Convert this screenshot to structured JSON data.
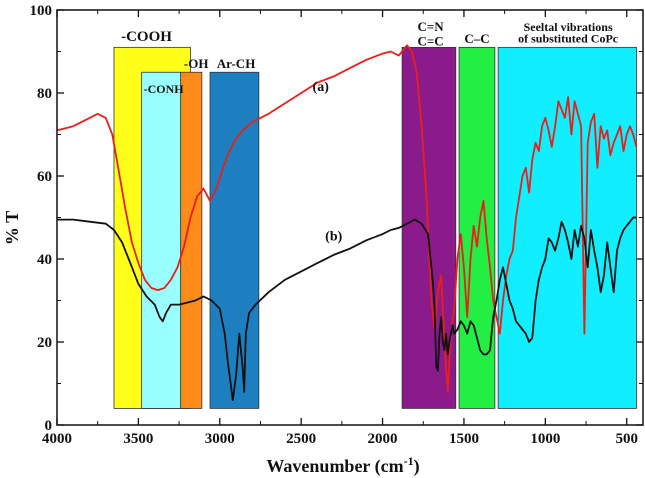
{
  "chart_data": {
    "type": "line",
    "xlabel_main": "Wavenumber (cm",
    "xlabel_sup": "-1",
    "xlabel_close": ")",
    "ylabel": "% T",
    "xlim": [
      4000,
      400
    ],
    "ylim": [
      0,
      100
    ],
    "x_ticks": [
      4000,
      3500,
      3000,
      2500,
      2000,
      1500,
      1000,
      500
    ],
    "y_ticks": [
      0,
      20,
      40,
      60,
      80,
      100
    ],
    "bands": [
      {
        "x_from": 3650,
        "x_to": 3180,
        "y_from": 4,
        "y_to": 91,
        "color": "#ffff1a",
        "label": "-COOH",
        "label_x": 3450,
        "label_y": 92.5,
        "font": 15
      },
      {
        "x_from": 3480,
        "x_to": 3240,
        "y_from": 4,
        "y_to": 85,
        "color": "#99ffff",
        "label": "-CONH",
        "label_x": 3345,
        "label_y": 80,
        "font": 12
      },
      {
        "x_from": 3240,
        "x_to": 3110,
        "y_from": 4,
        "y_to": 85,
        "color": "#ff8c1a",
        "label": "-OH",
        "label_x": 3145,
        "label_y": 86,
        "font": 13
      },
      {
        "x_from": 3060,
        "x_to": 2760,
        "y_from": 4,
        "y_to": 85,
        "color": "#1e7fc0",
        "label": "Ar-CH",
        "label_x": 2900,
        "label_y": 86,
        "font": 13
      },
      {
        "x_from": 1880,
        "x_to": 1550,
        "y_from": 4,
        "y_to": 91,
        "color": "#8b1a8b",
        "label": "C=N",
        "label_x": 1705,
        "label_y": 95,
        "font": 13,
        "label2": "C=C",
        "label2_y": 91.5
      },
      {
        "x_from": 1530,
        "x_to": 1310,
        "y_from": 4,
        "y_to": 91,
        "color": "#22ee44",
        "label": "C–C",
        "label_x": 1420,
        "label_y": 92,
        "font": 13
      },
      {
        "x_from": 1290,
        "x_to": 440,
        "y_from": 4,
        "y_to": 91,
        "color": "#11eeff",
        "label": "Seeltal vibrations",
        "label_x": 860,
        "label_y": 95,
        "font": 12,
        "label2": "of substituted CoPc",
        "label2_y": 92.2
      }
    ],
    "series": [
      {
        "name": "(a)",
        "color": "#e8201a",
        "label_x": 2380,
        "label_y": 80.5,
        "x": [
          4000,
          3900,
          3800,
          3750,
          3700,
          3660,
          3620,
          3580,
          3540,
          3500,
          3460,
          3420,
          3380,
          3340,
          3300,
          3260,
          3220,
          3180,
          3140,
          3100,
          3060,
          3020,
          2980,
          2940,
          2900,
          2860,
          2800,
          2750,
          2700,
          2600,
          2500,
          2400,
          2300,
          2200,
          2100,
          2000,
          1950,
          1900,
          1870,
          1850,
          1820,
          1790,
          1760,
          1730,
          1700,
          1680,
          1660,
          1640,
          1620,
          1600,
          1580,
          1560,
          1540,
          1520,
          1500,
          1480,
          1460,
          1440,
          1420,
          1400,
          1380,
          1360,
          1340,
          1320,
          1300,
          1280,
          1260,
          1240,
          1220,
          1200,
          1180,
          1160,
          1140,
          1120,
          1100,
          1080,
          1060,
          1040,
          1020,
          1000,
          980,
          960,
          940,
          920,
          900,
          880,
          860,
          840,
          820,
          800,
          780,
          760,
          740,
          720,
          700,
          680,
          660,
          640,
          620,
          600,
          580,
          560,
          540,
          520,
          500,
          480,
          460,
          440
        ],
        "y": [
          71,
          72,
          74,
          75,
          74,
          70,
          61,
          52,
          44,
          39,
          35,
          33,
          32.5,
          33,
          35,
          38,
          43,
          50,
          55,
          57,
          54,
          57,
          62,
          66,
          69,
          71,
          73,
          74,
          75,
          77.5,
          80,
          82.5,
          84,
          86,
          88,
          89.5,
          90,
          89,
          90.5,
          91.5,
          90,
          85,
          72,
          55,
          30,
          23,
          32,
          36,
          20,
          8,
          22,
          28,
          40,
          46,
          38,
          26,
          40,
          48,
          43,
          50,
          54,
          45,
          38,
          30,
          26,
          22,
          30,
          36,
          40,
          42,
          50,
          55,
          60,
          62,
          56,
          64,
          68,
          66,
          72,
          74,
          71,
          67,
          72,
          78,
          76,
          74,
          79,
          70,
          78,
          75,
          72,
          22,
          68,
          73,
          75,
          62,
          72,
          69,
          71,
          65,
          68,
          70,
          72,
          66,
          70,
          72,
          70,
          67
        ]
      },
      {
        "name": "(b)",
        "color": "#111111",
        "label_x": 2300,
        "label_y": 44.5,
        "x": [
          4000,
          3900,
          3800,
          3700,
          3650,
          3600,
          3550,
          3500,
          3450,
          3400,
          3370,
          3350,
          3330,
          3300,
          3250,
          3200,
          3150,
          3100,
          3050,
          3000,
          2970,
          2950,
          2930,
          2920,
          2900,
          2880,
          2860,
          2850,
          2840,
          2820,
          2780,
          2700,
          2600,
          2500,
          2400,
          2300,
          2200,
          2100,
          2000,
          1950,
          1900,
          1850,
          1800,
          1760,
          1720,
          1700,
          1690,
          1680,
          1670,
          1660,
          1650,
          1640,
          1630,
          1620,
          1610,
          1600,
          1590,
          1580,
          1570,
          1560,
          1540,
          1520,
          1500,
          1480,
          1460,
          1440,
          1420,
          1400,
          1380,
          1360,
          1340,
          1320,
          1300,
          1280,
          1260,
          1240,
          1220,
          1200,
          1180,
          1160,
          1140,
          1120,
          1100,
          1080,
          1060,
          1040,
          1020,
          1000,
          980,
          960,
          940,
          920,
          900,
          880,
          860,
          840,
          820,
          800,
          780,
          760,
          740,
          720,
          700,
          680,
          660,
          640,
          620,
          600,
          580,
          560,
          540,
          520,
          500,
          480,
          460,
          440
        ],
        "y": [
          49.5,
          49.5,
          49,
          48.5,
          47,
          44,
          39,
          34,
          31,
          29,
          26,
          25,
          27,
          29,
          29,
          29.5,
          30,
          31,
          30,
          28,
          22,
          15,
          9,
          6,
          12,
          22,
          14,
          8,
          22,
          27,
          29,
          32,
          35,
          37,
          39,
          41,
          42.5,
          44.5,
          46,
          47,
          47.5,
          48.5,
          49.5,
          48.5,
          46,
          38,
          34,
          28,
          14,
          13,
          22,
          26,
          20,
          18,
          22,
          17,
          20,
          22,
          24,
          22,
          23,
          25,
          24,
          22,
          25,
          24,
          21,
          18,
          17,
          17,
          18,
          26,
          30,
          35,
          38,
          34,
          30,
          28,
          25,
          24,
          23,
          22,
          20,
          21,
          30,
          35,
          38,
          40,
          45,
          44,
          42,
          45,
          49,
          47,
          44,
          40,
          47,
          43,
          48,
          45,
          38,
          47,
          42,
          38,
          32,
          36,
          44,
          38,
          32,
          42,
          45,
          47,
          48,
          49,
          50,
          50
        ]
      }
    ]
  }
}
